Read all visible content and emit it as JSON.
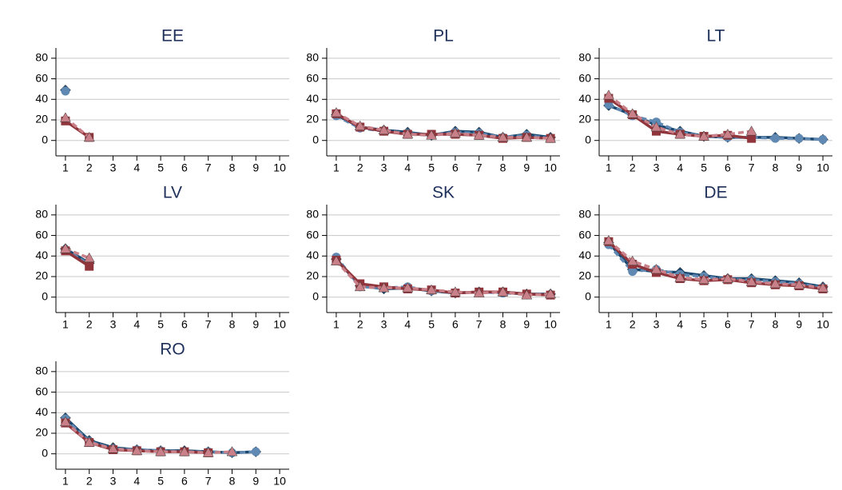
{
  "chart_data": [
    {
      "type": "line",
      "title": "EE",
      "x": [
        1,
        2,
        3,
        4,
        5,
        6,
        7,
        8,
        9,
        10
      ],
      "xlim": [
        0.6,
        10.4
      ],
      "ylim": [
        -15,
        90
      ],
      "xticks": [
        1,
        2,
        3,
        4,
        5,
        6,
        7,
        8,
        9,
        10
      ],
      "yticks": [
        0,
        20,
        40,
        60,
        80
      ],
      "grid": true,
      "series": [
        {
          "color": "#1a476f",
          "marker": "diamond",
          "dash": false,
          "values": [
            49,
            null,
            null,
            null,
            null,
            null,
            null,
            null,
            null,
            null
          ]
        },
        {
          "color": "#5f88b2",
          "marker": "circle",
          "dash": true,
          "values": [
            48,
            null,
            null,
            null,
            null,
            null,
            null,
            null,
            null,
            null
          ]
        },
        {
          "color": "#90353b",
          "marker": "square",
          "dash": false,
          "values": [
            19,
            3,
            null,
            null,
            null,
            null,
            null,
            null,
            null,
            null
          ]
        },
        {
          "color": "#c98088",
          "marker": "triangle",
          "dash": true,
          "values": [
            22,
            3,
            null,
            null,
            null,
            null,
            null,
            null,
            null,
            null
          ]
        }
      ]
    },
    {
      "type": "line",
      "title": "PL",
      "x": [
        1,
        2,
        3,
        4,
        5,
        6,
        7,
        8,
        9,
        10
      ],
      "xlim": [
        0.6,
        10.4
      ],
      "ylim": [
        -15,
        90
      ],
      "xticks": [
        1,
        2,
        3,
        4,
        5,
        6,
        7,
        8,
        9,
        10
      ],
      "yticks": [
        0,
        20,
        40,
        60,
        80
      ],
      "grid": true,
      "series": [
        {
          "color": "#1a476f",
          "marker": "diamond",
          "dash": false,
          "values": [
            25,
            13,
            10,
            8,
            5,
            9,
            8,
            3,
            6,
            3
          ]
        },
        {
          "color": "#5f88b2",
          "marker": "circle",
          "dash": true,
          "values": [
            24,
            12,
            9,
            7,
            5,
            8,
            7,
            3,
            5,
            2
          ]
        },
        {
          "color": "#90353b",
          "marker": "square",
          "dash": false,
          "values": [
            26,
            13,
            9,
            6,
            6,
            6,
            5,
            2,
            3,
            2
          ]
        },
        {
          "color": "#c98088",
          "marker": "triangle",
          "dash": true,
          "values": [
            27,
            14,
            10,
            6,
            5,
            7,
            5,
            3,
            3,
            2
          ]
        }
      ]
    },
    {
      "type": "line",
      "title": "LT",
      "x": [
        1,
        2,
        3,
        4,
        5,
        6,
        7,
        8,
        9,
        10
      ],
      "xlim": [
        0.6,
        10.4
      ],
      "ylim": [
        -15,
        90
      ],
      "xticks": [
        1,
        2,
        3,
        4,
        5,
        6,
        7,
        8,
        9,
        10
      ],
      "yticks": [
        0,
        20,
        40,
        60,
        80
      ],
      "grid": true,
      "series": [
        {
          "color": "#1a476f",
          "marker": "diamond",
          "dash": false,
          "values": [
            34,
            25,
            15,
            9,
            4,
            3,
            3,
            3,
            2,
            1
          ]
        },
        {
          "color": "#5f88b2",
          "marker": "circle",
          "dash": true,
          "values": [
            35,
            24,
            18,
            8,
            4,
            3,
            3,
            2,
            2,
            1
          ]
        },
        {
          "color": "#90353b",
          "marker": "square",
          "dash": false,
          "values": [
            41,
            25,
            9,
            6,
            4,
            5,
            2,
            null,
            null,
            null
          ]
        },
        {
          "color": "#c98088",
          "marker": "triangle",
          "dash": true,
          "values": [
            44,
            26,
            13,
            6,
            4,
            6,
            9,
            null,
            null,
            null
          ]
        }
      ]
    },
    {
      "type": "line",
      "title": "LV",
      "x": [
        1,
        2,
        3,
        4,
        5,
        6,
        7,
        8,
        9,
        10
      ],
      "xlim": [
        0.6,
        10.4
      ],
      "ylim": [
        -15,
        90
      ],
      "xticks": [
        1,
        2,
        3,
        4,
        5,
        6,
        7,
        8,
        9,
        10
      ],
      "yticks": [
        0,
        20,
        40,
        60,
        80
      ],
      "grid": true,
      "series": [
        {
          "color": "#1a476f",
          "marker": "diamond",
          "dash": false,
          "values": [
            47,
            33,
            null,
            null,
            null,
            null,
            null,
            null,
            null,
            null
          ]
        },
        {
          "color": "#5f88b2",
          "marker": "circle",
          "dash": true,
          "values": [
            46,
            32,
            null,
            null,
            null,
            null,
            null,
            null,
            null,
            null
          ]
        },
        {
          "color": "#90353b",
          "marker": "square",
          "dash": false,
          "values": [
            45,
            30,
            null,
            null,
            null,
            null,
            null,
            null,
            null,
            null
          ]
        },
        {
          "color": "#c98088",
          "marker": "triangle",
          "dash": true,
          "values": [
            47,
            38,
            null,
            null,
            null,
            null,
            null,
            null,
            null,
            null
          ]
        }
      ]
    },
    {
      "type": "line",
      "title": "SK",
      "x": [
        1,
        2,
        3,
        4,
        5,
        6,
        7,
        8,
        9,
        10
      ],
      "xlim": [
        0.6,
        10.4
      ],
      "ylim": [
        -15,
        90
      ],
      "xticks": [
        1,
        2,
        3,
        4,
        5,
        6,
        7,
        8,
        9,
        10
      ],
      "yticks": [
        0,
        20,
        40,
        60,
        80
      ],
      "grid": true,
      "series": [
        {
          "color": "#1a476f",
          "marker": "diamond",
          "dash": false,
          "values": [
            37,
            11,
            8,
            9,
            6,
            4,
            5,
            5,
            3,
            3
          ]
        },
        {
          "color": "#5f88b2",
          "marker": "circle",
          "dash": true,
          "values": [
            39,
            10,
            9,
            10,
            6,
            4,
            5,
            4,
            3,
            2
          ]
        },
        {
          "color": "#90353b",
          "marker": "square",
          "dash": false,
          "values": [
            36,
            13,
            10,
            8,
            7,
            4,
            5,
            5,
            3,
            2
          ]
        },
        {
          "color": "#c98088",
          "marker": "triangle",
          "dash": true,
          "values": [
            35,
            10,
            9,
            9,
            7,
            5,
            4,
            5,
            2,
            3
          ]
        }
      ]
    },
    {
      "type": "line",
      "title": "DE",
      "x": [
        1,
        2,
        3,
        4,
        5,
        6,
        7,
        8,
        9,
        10
      ],
      "xlim": [
        0.6,
        10.4
      ],
      "ylim": [
        -15,
        90
      ],
      "xticks": [
        1,
        2,
        3,
        4,
        5,
        6,
        7,
        8,
        9,
        10
      ],
      "yticks": [
        0,
        20,
        40,
        60,
        80
      ],
      "grid": true,
      "series": [
        {
          "color": "#1a476f",
          "marker": "diamond",
          "dash": false,
          "values": [
            53,
            27,
            25,
            24,
            21,
            18,
            18,
            16,
            14,
            10
          ]
        },
        {
          "color": "#5f88b2",
          "marker": "circle",
          "dash": true,
          "values": [
            51,
            25,
            27,
            22,
            20,
            17,
            17,
            15,
            13,
            9
          ]
        },
        {
          "color": "#90353b",
          "marker": "square",
          "dash": false,
          "values": [
            54,
            32,
            24,
            18,
            16,
            17,
            14,
            12,
            11,
            8
          ]
        },
        {
          "color": "#c98088",
          "marker": "triangle",
          "dash": true,
          "values": [
            55,
            35,
            27,
            19,
            17,
            18,
            15,
            13,
            12,
            9
          ]
        }
      ]
    },
    {
      "type": "line",
      "title": "RO",
      "x": [
        1,
        2,
        3,
        4,
        5,
        6,
        7,
        8,
        9,
        10
      ],
      "xlim": [
        0.6,
        10.4
      ],
      "ylim": [
        -15,
        90
      ],
      "xticks": [
        1,
        2,
        3,
        4,
        5,
        6,
        7,
        8,
        9,
        10
      ],
      "yticks": [
        0,
        20,
        40,
        60,
        80
      ],
      "grid": true,
      "series": [
        {
          "color": "#1a476f",
          "marker": "diamond",
          "dash": false,
          "values": [
            35,
            13,
            6,
            4,
            3,
            3,
            2,
            1,
            2,
            null
          ]
        },
        {
          "color": "#5f88b2",
          "marker": "circle",
          "dash": true,
          "values": [
            34,
            12,
            5,
            4,
            3,
            2,
            2,
            1,
            2,
            null
          ]
        },
        {
          "color": "#90353b",
          "marker": "square",
          "dash": false,
          "values": [
            30,
            11,
            4,
            3,
            2,
            2,
            1,
            null,
            null,
            null
          ]
        },
        {
          "color": "#c98088",
          "marker": "triangle",
          "dash": true,
          "values": [
            31,
            11,
            5,
            3,
            2,
            2,
            1,
            2,
            null,
            null
          ]
        }
      ]
    }
  ]
}
